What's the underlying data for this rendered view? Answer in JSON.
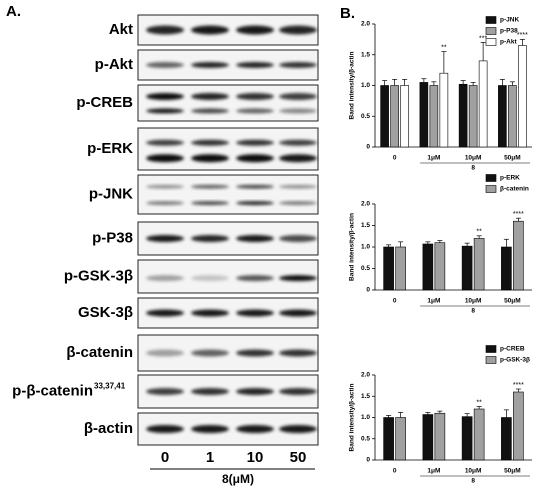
{
  "panel_a": {
    "label": "A.",
    "rows": [
      {
        "label": "Akt"
      },
      {
        "label": "p-Akt"
      },
      {
        "label": "p-CREB"
      },
      {
        "label": "p-ERK"
      },
      {
        "label": "p-JNK"
      },
      {
        "label": "p-P38"
      },
      {
        "label": "p-GSK-3β"
      },
      {
        "label": "GSK-3β"
      },
      {
        "label": "β-catenin"
      },
      {
        "label": "p-β-catenin",
        "superscript": "33,37,41"
      },
      {
        "label": "β-actin"
      }
    ],
    "lanes": [
      "0",
      "1",
      "10",
      "50"
    ],
    "lane_unit": "8(μM)"
  },
  "panel_b_label": "B.",
  "chart_data": [
    {
      "type": "bar",
      "y_label": "Band intensity/β-actin",
      "categories": [
        "0",
        "1μM",
        "10μM",
        "50μM"
      ],
      "x_group_label": "8",
      "ylim": [
        0,
        2
      ],
      "yticks": [
        0,
        0.5,
        {
          "value": 1,
          "label": "1.0"
        },
        1.5,
        {
          "value": 2,
          "label": "2.0"
        }
      ],
      "series": [
        {
          "name": "p-JNK",
          "color": "#111111",
          "values": [
            1.0,
            1.05,
            1.02,
            1.0
          ],
          "errors": [
            0.08,
            0.06,
            0.06,
            0.1
          ],
          "significance": [
            null,
            null,
            null,
            null
          ]
        },
        {
          "name": "p-P38",
          "color": "#a0a0a0",
          "values": [
            1.0,
            1.0,
            1.0,
            1.0
          ],
          "errors": [
            0.1,
            0.06,
            0.05,
            0.06
          ],
          "significance": [
            null,
            null,
            null,
            null
          ]
        },
        {
          "name": "p-Akt",
          "color": "#ffffff",
          "values": [
            1.0,
            1.2,
            1.4,
            1.65
          ],
          "errors": [
            0.1,
            0.35,
            0.3,
            0.1
          ],
          "significance": [
            null,
            "**",
            "***",
            "****"
          ]
        }
      ]
    },
    {
      "type": "bar",
      "y_label": "Band intensity/β-actin",
      "categories": [
        "0",
        "1μM",
        "10μM",
        "50μM"
      ],
      "x_group_label": "8",
      "ylim": [
        0,
        2
      ],
      "yticks": [
        0,
        0.5,
        {
          "value": 1,
          "label": "1.0"
        },
        1.5,
        {
          "value": 2,
          "label": "2.0"
        }
      ],
      "series": [
        {
          "name": "p-ERK",
          "color": "#111111",
          "values": [
            1.0,
            1.07,
            1.02,
            1.0
          ],
          "errors": [
            0.05,
            0.05,
            0.07,
            0.18
          ],
          "significance": [
            null,
            null,
            null,
            null
          ]
        },
        {
          "name": "β-catenin",
          "color": "#a0a0a0",
          "values": [
            1.0,
            1.1,
            1.2,
            1.6
          ],
          "errors": [
            0.12,
            0.05,
            0.06,
            0.07
          ],
          "significance": [
            null,
            null,
            "**",
            "****"
          ]
        }
      ]
    },
    {
      "type": "bar",
      "y_label": "Band intensity/β-actin",
      "categories": [
        "0",
        "1μM",
        "10μM",
        "50μM"
      ],
      "x_group_label": "8",
      "ylim": [
        0,
        2
      ],
      "yticks": [
        0,
        0.5,
        {
          "value": 1,
          "label": "1.0"
        },
        1.5,
        {
          "value": 2,
          "label": "2.0"
        }
      ],
      "series": [
        {
          "name": "p-CREB",
          "color": "#111111",
          "values": [
            1.0,
            1.07,
            1.02,
            1.0
          ],
          "errors": [
            0.05,
            0.05,
            0.07,
            0.18
          ],
          "significance": [
            null,
            null,
            null,
            null
          ]
        },
        {
          "name": "p-GSK-3β",
          "color": "#a0a0a0",
          "values": [
            1.0,
            1.1,
            1.2,
            1.6
          ],
          "errors": [
            0.12,
            0.05,
            0.06,
            0.07
          ],
          "significance": [
            null,
            null,
            "**",
            "****"
          ]
        }
      ]
    }
  ]
}
